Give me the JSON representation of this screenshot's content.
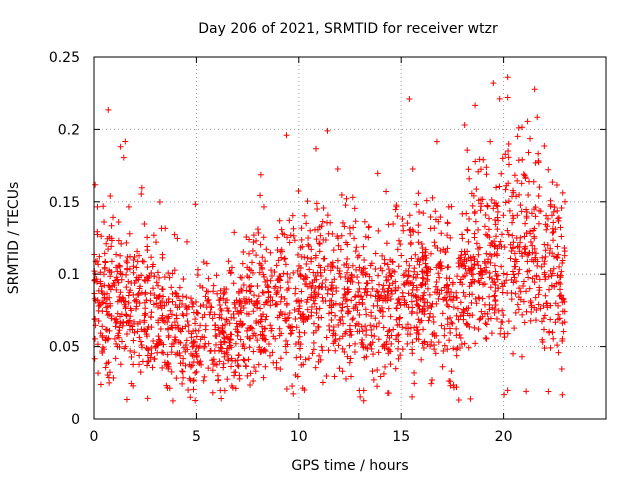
{
  "chart_data": {
    "type": "scatter",
    "title": "Day 206 of 2021, SRMTID for receiver wtzr",
    "xlabel": "GPS time / hours",
    "ylabel": "SRMTID / TECUs",
    "xlim": [
      0,
      25
    ],
    "ylim": [
      0,
      0.25
    ],
    "grid": true,
    "xticks": [
      0,
      5,
      10,
      15,
      20
    ],
    "xtick_labels": [
      "0",
      "5",
      "10",
      "15",
      "20"
    ],
    "yticks": [
      0,
      0.05,
      0.1,
      0.15,
      0.2,
      0.25
    ],
    "ytick_labels": [
      "0",
      "0.05",
      "0.1",
      "0.15",
      "0.2",
      "0.25"
    ],
    "marker": "+",
    "color": "#ff0000",
    "series": [
      {
        "name": "SRMTID",
        "x_range": [
          0,
          23
        ],
        "mean_profile_x": [
          0,
          0.5,
          1,
          2,
          3,
          4,
          4.5,
          5,
          6,
          7,
          8,
          9,
          10,
          11,
          12,
          13,
          14,
          15,
          16,
          17,
          17.5,
          18,
          19,
          20,
          21,
          22,
          23
        ],
        "mean_profile_y": [
          0.09,
          0.085,
          0.08,
          0.082,
          0.068,
          0.058,
          0.055,
          0.058,
          0.06,
          0.062,
          0.075,
          0.078,
          0.08,
          0.082,
          0.083,
          0.08,
          0.078,
          0.082,
          0.088,
          0.095,
          0.075,
          0.1,
          0.105,
          0.11,
          0.12,
          0.11,
          0.095
        ],
        "notable_points": [
          {
            "x": 1.3,
            "y": 0.188
          },
          {
            "x": 9.4,
            "y": 0.196
          },
          {
            "x": 11.4,
            "y": 0.199
          },
          {
            "x": 15.4,
            "y": 0.221
          },
          {
            "x": 18.1,
            "y": 0.203
          },
          {
            "x": 19.5,
            "y": 0.232
          },
          {
            "x": 20.2,
            "y": 0.236
          },
          {
            "x": 20.2,
            "y": 0.222
          },
          {
            "x": 4.7,
            "y": 0.015
          },
          {
            "x": 17.7,
            "y": 0.022
          }
        ]
      }
    ]
  }
}
